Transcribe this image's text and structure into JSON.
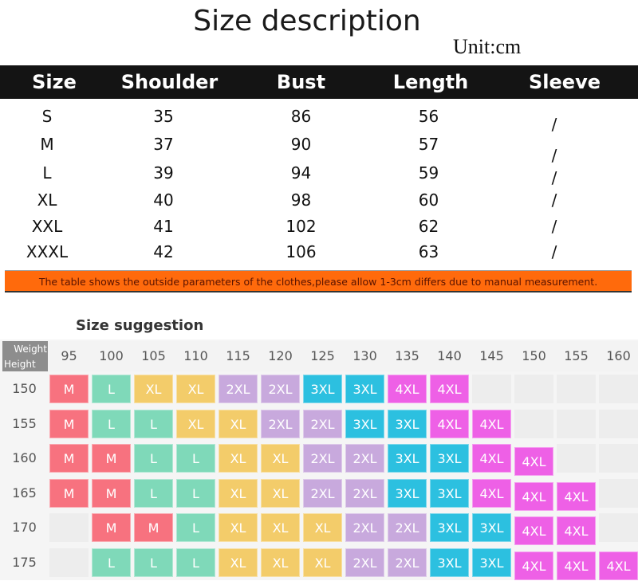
{
  "title": "Size description",
  "unit": "Unit:cm",
  "size_table": {
    "headers": [
      "Size",
      "Shoulder",
      "Bust",
      "Length",
      "Sleeve"
    ],
    "rows": [
      [
        "S",
        "35",
        "86",
        "56",
        "/"
      ],
      [
        "M",
        "37",
        "90",
        "57",
        "/"
      ],
      [
        "L",
        "39",
        "94",
        "59",
        "/"
      ],
      [
        "XL",
        "40",
        "98",
        "60",
        "/"
      ],
      [
        "XXL",
        "41",
        "102",
        "62",
        "/"
      ],
      [
        "XXXL",
        "42",
        "106",
        "63",
        "/"
      ]
    ]
  },
  "notice": "The table shows the outside parameters of the clothes,please allow 1-3cm differs due to manual measurement.",
  "suggestion": {
    "title": "Size suggestion",
    "corner_weight": "Weight",
    "corner_height": "Height",
    "weights": [
      "95",
      "100",
      "105",
      "110",
      "115",
      "120",
      "125",
      "130",
      "135",
      "140",
      "145",
      "150",
      "155",
      "160"
    ],
    "heights": [
      "150",
      "155",
      "160",
      "165",
      "170",
      "175"
    ],
    "cells": [
      [
        "M",
        "L",
        "XL",
        "XL",
        "2XL",
        "2XL",
        "3XL",
        "3XL",
        "4XL",
        "4XL",
        "",
        "",
        "",
        ""
      ],
      [
        "M",
        "L",
        "L",
        "XL",
        "XL",
        "2XL",
        "2XL",
        "3XL",
        "3XL",
        "4XL",
        "4XL",
        "",
        "",
        ""
      ],
      [
        "M",
        "M",
        "L",
        "L",
        "XL",
        "XL",
        "2XL",
        "2XL",
        "3XL",
        "3XL",
        "4XL",
        "4XL",
        "",
        ""
      ],
      [
        "M",
        "M",
        "L",
        "L",
        "XL",
        "XL",
        "2XL",
        "2XL",
        "3XL",
        "3XL",
        "4XL",
        "4XL",
        "4XL",
        ""
      ],
      [
        "",
        "M",
        "M",
        "L",
        "XL",
        "XL",
        "XL",
        "2XL",
        "2XL",
        "3XL",
        "3XL",
        "4XL",
        "4XL",
        ""
      ],
      [
        "",
        "L",
        "L",
        "L",
        "XL",
        "XL",
        "XL",
        "2XL",
        "2XL",
        "3XL",
        "3XL",
        "4XL",
        "4XL",
        "4XL"
      ]
    ],
    "colors": {
      "M": "#f7727f",
      "L": "#7fd9b9",
      "XL": "#f3cc6a",
      "2XL": "#c8a9dd",
      "3XL": "#2cc0e0",
      "4XL": "#ee60e6"
    }
  }
}
